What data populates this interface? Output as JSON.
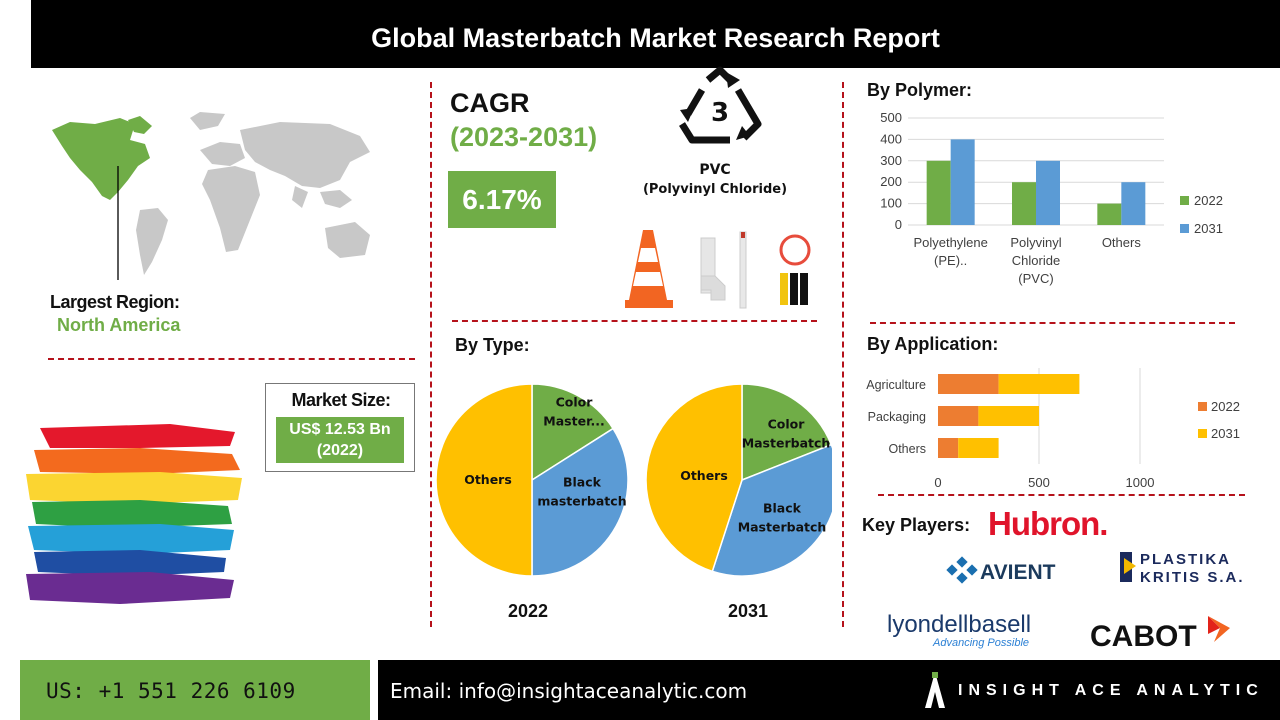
{
  "header": {
    "title": "Global Masterbatch Market Research Report"
  },
  "region": {
    "title": "Largest Region:",
    "value": "North America"
  },
  "market_size": {
    "title": "Market Size:",
    "value_line1": "US$ 12.53 Bn",
    "value_line2": "(2022)"
  },
  "cagr": {
    "title": "CAGR",
    "years": "(2023-2031)",
    "value": "6.17%"
  },
  "pvc": {
    "icon": "recycle-3-icon",
    "number": "3",
    "label": "PVC",
    "sublabel": "(Polyvinyl Chloride)"
  },
  "sections": {
    "by_type": "By Type:",
    "by_polymer": "By Polymer:",
    "by_application": "By Application:",
    "key_players": "Key Players:"
  },
  "key_players": {
    "hubron": "Hubron.",
    "avient": "AVIENT",
    "plastika_line1": "PLASTIKA",
    "plastika_line2": "KRITIS S.A.",
    "lyondell": "lyondellbasell",
    "lyondell_tagline": "Advancing Possible",
    "cabot": "CABOT"
  },
  "footer": {
    "phone": "US: +1 551 226 6109",
    "email": "Email: info@insightaceanalytic.com",
    "brand": "INSIGHT ACE ANALYTIC"
  },
  "colors": {
    "green": "#70ad47",
    "blue": "#5b9bd5",
    "orange": "#ed7d31",
    "yellow": "#ffc000",
    "red": "#b5121b"
  },
  "chart_data": [
    {
      "type": "pie",
      "title": "2022",
      "labels": [
        "Color Master...",
        "Black masterbatch",
        "Others"
      ],
      "values": [
        16,
        34,
        50
      ],
      "colors": [
        "#70ad47",
        "#5b9bd5",
        "#ffc000"
      ]
    },
    {
      "type": "pie",
      "title": "2031",
      "labels": [
        "Color Masterbatch",
        "Black Masterbatch",
        "Others"
      ],
      "values": [
        19,
        36,
        45
      ],
      "colors": [
        "#70ad47",
        "#5b9bd5",
        "#ffc000"
      ]
    },
    {
      "type": "bar",
      "orientation": "vertical",
      "categories": [
        [
          "Polyethylene",
          "(PE).."
        ],
        [
          "Polyvinyl",
          "Chloride",
          "(PVC)"
        ],
        [
          "Others"
        ]
      ],
      "series": [
        {
          "name": "2022",
          "values": [
            300,
            200,
            100
          ],
          "color": "#70ad47"
        },
        {
          "name": "2031",
          "values": [
            400,
            300,
            200
          ],
          "color": "#5b9bd5"
        }
      ],
      "ylim": [
        0,
        500
      ],
      "yticks": [
        0,
        100,
        200,
        300,
        400,
        500
      ],
      "grid": true,
      "legend": "right"
    },
    {
      "type": "bar",
      "orientation": "horizontal",
      "stacked": true,
      "categories": [
        "Agriculture",
        "Packaging",
        "Others"
      ],
      "series": [
        {
          "name": "2022",
          "values": [
            300,
            200,
            100
          ],
          "color": "#ed7d31"
        },
        {
          "name": "2031",
          "values": [
            400,
            300,
            200
          ],
          "color": "#ffc000"
        }
      ],
      "xlim": [
        0,
        1000
      ],
      "xticks": [
        0,
        500,
        1000
      ],
      "legend": "right"
    }
  ]
}
